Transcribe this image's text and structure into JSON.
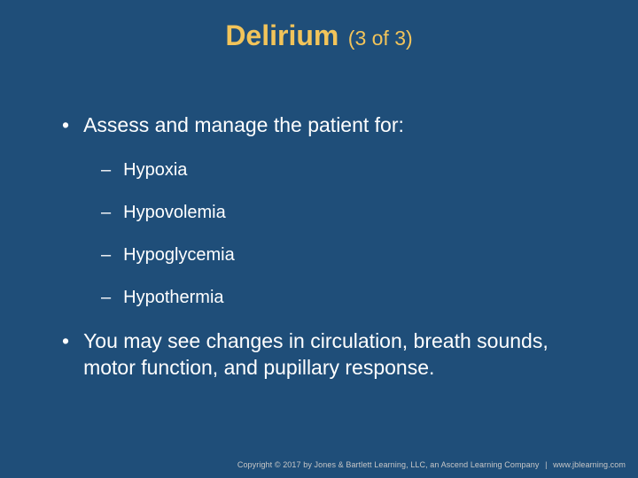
{
  "colors": {
    "background": "#1f4e79",
    "title": "#f2c45a",
    "body_text": "#ffffff",
    "footer_text": "#c7c7c7"
  },
  "typography": {
    "title_main_fontsize": 32,
    "title_sub_fontsize": 23,
    "bullet_l1_fontsize": 23,
    "bullet_l2_fontsize": 20,
    "footer_fontsize": 9,
    "font_family": "Arial"
  },
  "title": {
    "main": "Delirium",
    "sub": "(3 of 3)"
  },
  "bullets": [
    {
      "level": 1,
      "text": "Assess and manage the patient for:"
    },
    {
      "level": 2,
      "text": "Hypoxia"
    },
    {
      "level": 2,
      "text": "Hypovolemia"
    },
    {
      "level": 2,
      "text": "Hypoglycemia"
    },
    {
      "level": 2,
      "text": "Hypothermia"
    },
    {
      "level": 1,
      "text": "You may see changes in circulation, breath sounds, motor function, and pupillary response."
    }
  ],
  "footer": {
    "copyright": "Copyright © 2017 by Jones & Bartlett Learning, LLC, an Ascend Learning Company",
    "url": "www.jblearning.com"
  }
}
